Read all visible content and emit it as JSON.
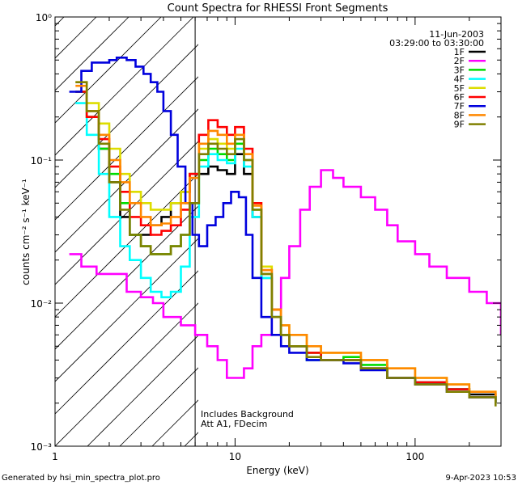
{
  "chart_data": {
    "type": "line",
    "title": "Count Spectra for RHESSI Front Segments",
    "xlabel": "Energy (keV)",
    "ylabel": "counts cm⁻² s⁻¹ keV⁻¹",
    "xscale": "log",
    "yscale": "log",
    "xlim": [
      1,
      300
    ],
    "ylim": [
      0.001,
      1
    ],
    "x_ticks": [
      {
        "value": 1,
        "label": "1"
      },
      {
        "value": 10,
        "label": "10"
      },
      {
        "value": 100,
        "label": "100"
      }
    ],
    "y_ticks": [
      {
        "value": 1,
        "label": "10⁰"
      },
      {
        "value": 0.1,
        "label": "10⁻¹"
      },
      {
        "value": 0.01,
        "label": "10⁻²"
      },
      {
        "value": 0.001,
        "label": "10⁻³"
      }
    ],
    "date": "11-Jun-2003",
    "time_range": "03:29:00 to 03:30:00",
    "legend_position": "top-right",
    "shaded_region": {
      "x_range": [
        1,
        6
      ],
      "style": "hatched"
    },
    "annotations": [
      "Includes Background",
      "Att A1, FDecim"
    ],
    "series": [
      {
        "name": "1F",
        "color": "#000000",
        "x": [
          1.3,
          1.5,
          1.75,
          2.0,
          2.3,
          2.6,
          3.0,
          3.4,
          3.9,
          4.4,
          5.0,
          5.6,
          6.3,
          7.1,
          8.0,
          9.0,
          10.0,
          11.2,
          12.5,
          14,
          16,
          18,
          20,
          25,
          30,
          40,
          50,
          70,
          100,
          150,
          200,
          280
        ],
        "y": [
          0.3,
          0.2,
          0.12,
          0.07,
          0.04,
          0.03,
          0.03,
          0.035,
          0.04,
          0.05,
          0.06,
          0.08,
          0.08,
          0.09,
          0.085,
          0.08,
          0.11,
          0.08,
          0.04,
          0.015,
          0.008,
          0.006,
          0.005,
          0.004,
          0.004,
          0.004,
          0.0035,
          0.003,
          0.0028,
          0.0025,
          0.0023,
          0.002
        ]
      },
      {
        "name": "2F",
        "color": "#ff00ff",
        "x": [
          1.2,
          1.4,
          1.7,
          2.0,
          2.5,
          3.0,
          3.5,
          4.0,
          5.0,
          6.0,
          7.0,
          8.0,
          9.0,
          10.0,
          11.2,
          12.5,
          14,
          16,
          18,
          20,
          23,
          26,
          30,
          35,
          40,
          50,
          60,
          70,
          80,
          100,
          120,
          150,
          200,
          250,
          300
        ],
        "y": [
          0.022,
          0.018,
          0.016,
          0.016,
          0.012,
          0.011,
          0.01,
          0.008,
          0.007,
          0.006,
          0.005,
          0.004,
          0.003,
          0.003,
          0.0035,
          0.005,
          0.006,
          0.009,
          0.015,
          0.025,
          0.045,
          0.065,
          0.085,
          0.075,
          0.065,
          0.055,
          0.045,
          0.035,
          0.027,
          0.022,
          0.018,
          0.015,
          0.012,
          0.01,
          0.006
        ]
      },
      {
        "name": "3F",
        "color": "#00dd00",
        "x": [
          1.3,
          1.5,
          1.75,
          2.0,
          2.3,
          2.6,
          3.0,
          3.4,
          3.9,
          4.4,
          5.0,
          5.6,
          6.3,
          7.1,
          8.0,
          9.0,
          10.0,
          11.2,
          12.5,
          14,
          16,
          18,
          20,
          25,
          30,
          40,
          50,
          70,
          100,
          150,
          200,
          280
        ],
        "y": [
          0.3,
          0.2,
          0.12,
          0.08,
          0.05,
          0.03,
          0.025,
          0.022,
          0.022,
          0.025,
          0.03,
          0.05,
          0.1,
          0.12,
          0.11,
          0.1,
          0.13,
          0.1,
          0.045,
          0.016,
          0.009,
          0.006,
          0.005,
          0.0045,
          0.004,
          0.0042,
          0.0037,
          0.003,
          0.0028,
          0.0025,
          0.0022,
          0.002
        ]
      },
      {
        "name": "4F",
        "color": "#00ffff",
        "x": [
          1.3,
          1.5,
          1.75,
          2.0,
          2.3,
          2.6,
          3.0,
          3.4,
          3.9,
          4.4,
          5.0,
          5.6,
          6.3,
          7.1,
          8.0,
          9.0,
          10.0,
          11.2,
          12.5,
          14,
          16,
          18,
          20,
          25,
          30,
          40,
          50,
          70,
          100,
          150,
          200,
          280
        ],
        "y": [
          0.25,
          0.15,
          0.08,
          0.04,
          0.025,
          0.02,
          0.015,
          0.012,
          0.011,
          0.012,
          0.018,
          0.04,
          0.09,
          0.11,
          0.1,
          0.095,
          0.12,
          0.09,
          0.04,
          0.015,
          0.008,
          0.006,
          0.005,
          0.004,
          0.004,
          0.004,
          0.0035,
          0.003,
          0.0028,
          0.0025,
          0.0022,
          0.002
        ]
      },
      {
        "name": "5F",
        "color": "#dddd00",
        "x": [
          1.3,
          1.5,
          1.75,
          2.0,
          2.3,
          2.6,
          3.0,
          3.4,
          3.9,
          4.4,
          5.0,
          5.6,
          6.3,
          7.1,
          8.0,
          9.0,
          10.0,
          11.2,
          12.5,
          14,
          16,
          18,
          20,
          25,
          30,
          40,
          50,
          70,
          100,
          150,
          200,
          280
        ],
        "y": [
          0.35,
          0.25,
          0.18,
          0.12,
          0.08,
          0.06,
          0.05,
          0.045,
          0.045,
          0.05,
          0.06,
          0.08,
          0.12,
          0.14,
          0.13,
          0.12,
          0.15,
          0.11,
          0.05,
          0.018,
          0.009,
          0.007,
          0.006,
          0.005,
          0.0045,
          0.0045,
          0.004,
          0.0035,
          0.003,
          0.0027,
          0.0024,
          0.0021
        ]
      },
      {
        "name": "6F",
        "color": "#ff0000",
        "x": [
          1.3,
          1.5,
          1.75,
          2.0,
          2.3,
          2.6,
          3.0,
          3.4,
          3.9,
          4.4,
          5.0,
          5.6,
          6.3,
          7.1,
          8.0,
          9.0,
          10.0,
          11.2,
          12.5,
          14,
          16,
          18,
          20,
          25,
          30,
          40,
          50,
          70,
          100,
          150,
          200,
          280
        ],
        "y": [
          0.3,
          0.2,
          0.14,
          0.09,
          0.06,
          0.04,
          0.035,
          0.03,
          0.032,
          0.035,
          0.045,
          0.08,
          0.15,
          0.19,
          0.17,
          0.15,
          0.17,
          0.12,
          0.05,
          0.017,
          0.009,
          0.006,
          0.005,
          0.0045,
          0.004,
          0.004,
          0.0035,
          0.003,
          0.0028,
          0.0025,
          0.0022,
          0.002
        ]
      },
      {
        "name": "7F",
        "color": "#0000dd",
        "x": [
          1.2,
          1.4,
          1.6,
          1.8,
          2.0,
          2.2,
          2.5,
          2.8,
          3.1,
          3.4,
          3.7,
          4.0,
          4.4,
          4.8,
          5.3,
          5.8,
          6.3,
          7.0,
          7.8,
          8.6,
          9.5,
          10.5,
          11.5,
          12.5,
          14,
          16,
          18,
          20,
          25,
          30,
          40,
          50,
          70,
          100,
          150,
          200,
          280
        ],
        "y": [
          0.3,
          0.42,
          0.48,
          0.48,
          0.5,
          0.52,
          0.5,
          0.45,
          0.4,
          0.35,
          0.3,
          0.22,
          0.15,
          0.09,
          0.05,
          0.03,
          0.025,
          0.035,
          0.04,
          0.05,
          0.06,
          0.055,
          0.03,
          0.015,
          0.008,
          0.006,
          0.005,
          0.0045,
          0.004,
          0.004,
          0.0038,
          0.0034,
          0.003,
          0.0027,
          0.0024,
          0.0022,
          0.002
        ]
      },
      {
        "name": "8F",
        "color": "#ff8800",
        "x": [
          1.3,
          1.5,
          1.75,
          2.0,
          2.3,
          2.6,
          3.0,
          3.4,
          3.9,
          4.4,
          5.0,
          5.6,
          6.3,
          7.1,
          8.0,
          9.0,
          10.0,
          11.2,
          12.5,
          14,
          16,
          18,
          20,
          25,
          30,
          40,
          50,
          70,
          100,
          150,
          200,
          280
        ],
        "y": [
          0.33,
          0.22,
          0.15,
          0.1,
          0.07,
          0.05,
          0.04,
          0.035,
          0.036,
          0.04,
          0.05,
          0.075,
          0.13,
          0.16,
          0.15,
          0.13,
          0.15,
          0.11,
          0.048,
          0.017,
          0.009,
          0.007,
          0.006,
          0.005,
          0.0045,
          0.0045,
          0.004,
          0.0035,
          0.003,
          0.0027,
          0.0024,
          0.0021
        ]
      },
      {
        "name": "9F",
        "color": "#808000",
        "x": [
          1.3,
          1.5,
          1.75,
          2.0,
          2.3,
          2.6,
          3.0,
          3.4,
          3.9,
          4.4,
          5.0,
          5.6,
          6.3,
          7.1,
          8.0,
          9.0,
          10.0,
          11.2,
          12.5,
          14,
          16,
          18,
          20,
          25,
          30,
          40,
          50,
          70,
          100,
          150,
          200,
          280
        ],
        "y": [
          0.35,
          0.22,
          0.13,
          0.07,
          0.045,
          0.03,
          0.025,
          0.022,
          0.022,
          0.025,
          0.03,
          0.05,
          0.11,
          0.13,
          0.12,
          0.11,
          0.14,
          0.1,
          0.045,
          0.016,
          0.008,
          0.006,
          0.005,
          0.0042,
          0.004,
          0.004,
          0.0035,
          0.003,
          0.0027,
          0.0024,
          0.0022,
          0.0019
        ]
      }
    ]
  },
  "footer": {
    "generated_by": "Generated by hsi_min_spectra_plot.pro",
    "timestamp": "9-Apr-2023 10:53"
  }
}
